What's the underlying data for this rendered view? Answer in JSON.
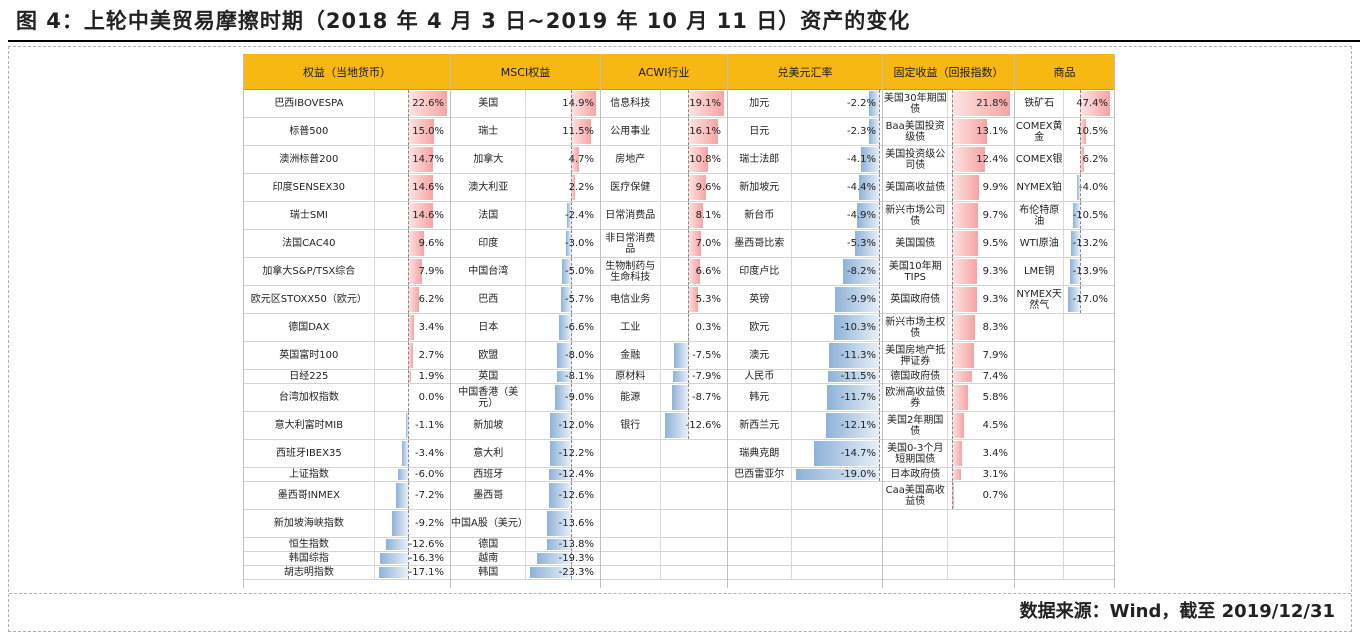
{
  "title": "图 4：上轮中美贸易摩擦时期（2018 年 4 月 3 日~2019 年 10 月 11 日）资产的变化",
  "source": "数据来源：Wind，截至 2019/12/31",
  "colors": {
    "header": "#f8b814",
    "positive": "#f6a4a4",
    "negative": "#8fb2d9"
  },
  "columns": [
    {
      "header": "权益（当地货币）",
      "items": [
        {
          "name": "巴西IBOVESPA",
          "value": "22.6%",
          "num": 22.6
        },
        {
          "name": "标普500",
          "value": "15.0%",
          "num": 15.0
        },
        {
          "name": "澳洲标普200",
          "value": "14.7%",
          "num": 14.7
        },
        {
          "name": "印度SENSEX30",
          "value": "14.6%",
          "num": 14.6
        },
        {
          "name": "瑞士SMI",
          "value": "14.6%",
          "num": 14.6
        },
        {
          "name": "法国CAC40",
          "value": "9.6%",
          "num": 9.6
        },
        {
          "name": "加拿大S&P/TSX综合",
          "value": "7.9%",
          "num": 7.9
        },
        {
          "name": "欧元区STOXX50（欧元）",
          "value": "6.2%",
          "num": 6.2
        },
        {
          "name": "德国DAX",
          "value": "3.4%",
          "num": 3.4
        },
        {
          "name": "英国富时100",
          "value": "2.7%",
          "num": 2.7
        },
        {
          "name": "日经225",
          "value": "1.9%",
          "num": 1.9
        },
        {
          "name": "台湾加权指数",
          "value": "0.0%",
          "num": 0.0
        },
        {
          "name": "意大利富时MIB",
          "value": "-1.1%",
          "num": -1.1
        },
        {
          "name": "西班牙IBEX35",
          "value": "-3.4%",
          "num": -3.4
        },
        {
          "name": "上证指数",
          "value": "-6.0%",
          "num": -6.0
        },
        {
          "name": "墨西哥INMEX",
          "value": "-7.2%",
          "num": -7.2
        },
        {
          "name": "新加坡海峡指数",
          "value": "-9.2%",
          "num": -9.2
        },
        {
          "name": "恒生指数",
          "value": "-12.6%",
          "num": -12.6
        },
        {
          "name": "韩国综指",
          "value": "-16.3%",
          "num": -16.3
        },
        {
          "name": "胡志明指数",
          "value": "-17.1%",
          "num": -17.1
        }
      ]
    },
    {
      "header": "MSCI权益",
      "items": [
        {
          "name": "美国",
          "value": "14.9%",
          "num": 14.9
        },
        {
          "name": "瑞士",
          "value": "11.5%",
          "num": 11.5
        },
        {
          "name": "加拿大",
          "value": "4.7%",
          "num": 4.7
        },
        {
          "name": "澳大利亚",
          "value": "2.2%",
          "num": 2.2
        },
        {
          "name": "法国",
          "value": "-2.4%",
          "num": -2.4
        },
        {
          "name": "印度",
          "value": "-3.0%",
          "num": -3.0
        },
        {
          "name": "中国台湾",
          "value": "-5.0%",
          "num": -5.0
        },
        {
          "name": "巴西",
          "value": "-5.7%",
          "num": -5.7
        },
        {
          "name": "日本",
          "value": "-6.6%",
          "num": -6.6
        },
        {
          "name": "欧盟",
          "value": "-8.0%",
          "num": -8.0
        },
        {
          "name": "英国",
          "value": "-8.1%",
          "num": -8.1
        },
        {
          "name": "中国香港（美元）",
          "value": "-9.0%",
          "num": -9.0
        },
        {
          "name": "新加坡",
          "value": "-12.0%",
          "num": -12.0
        },
        {
          "name": "意大利",
          "value": "-12.2%",
          "num": -12.2
        },
        {
          "name": "西班牙",
          "value": "-12.4%",
          "num": -12.4
        },
        {
          "name": "墨西哥",
          "value": "-12.6%",
          "num": -12.6
        },
        {
          "name": "中国A股（美元）",
          "value": "-13.6%",
          "num": -13.6
        },
        {
          "name": "德国",
          "value": "-13.8%",
          "num": -13.8
        },
        {
          "name": "越南",
          "value": "-19.3%",
          "num": -19.3
        },
        {
          "name": "韩国",
          "value": "-23.3%",
          "num": -23.3
        }
      ]
    },
    {
      "header": "ACWI行业",
      "items": [
        {
          "name": "信息科技",
          "value": "19.1%",
          "num": 19.1
        },
        {
          "name": "公用事业",
          "value": "16.1%",
          "num": 16.1
        },
        {
          "name": "房地产",
          "value": "10.8%",
          "num": 10.8
        },
        {
          "name": "医疗保健",
          "value": "9.6%",
          "num": 9.6
        },
        {
          "name": "日常消费品",
          "value": "8.1%",
          "num": 8.1
        },
        {
          "name": "非日常消费品",
          "value": "7.0%",
          "num": 7.0
        },
        {
          "name": "生物制药与生命科技",
          "value": "6.6%",
          "num": 6.6
        },
        {
          "name": "电信业务",
          "value": "5.3%",
          "num": 5.3
        },
        {
          "name": "工业",
          "value": "0.3%",
          "num": 0.3
        },
        {
          "name": "金融",
          "value": "-7.5%",
          "num": -7.5
        },
        {
          "name": "原材料",
          "value": "-7.9%",
          "num": -7.9
        },
        {
          "name": "能源",
          "value": "-8.7%",
          "num": -8.7
        },
        {
          "name": "银行",
          "value": "-12.6%",
          "num": -12.6
        }
      ]
    },
    {
      "header": "兑美元汇率",
      "items": [
        {
          "name": "加元",
          "value": "-2.2%",
          "num": -2.2
        },
        {
          "name": "日元",
          "value": "-2.3%",
          "num": -2.3
        },
        {
          "name": "瑞士法郎",
          "value": "-4.1%",
          "num": -4.1
        },
        {
          "name": "新加坡元",
          "value": "-4.4%",
          "num": -4.4
        },
        {
          "name": "新台币",
          "value": "-4.9%",
          "num": -4.9
        },
        {
          "name": "墨西哥比索",
          "value": "-5.3%",
          "num": -5.3
        },
        {
          "name": "印度卢比",
          "value": "-8.2%",
          "num": -8.2
        },
        {
          "name": "英镑",
          "value": "-9.9%",
          "num": -9.9
        },
        {
          "name": "欧元",
          "value": "-10.3%",
          "num": -10.3
        },
        {
          "name": "澳元",
          "value": "-11.3%",
          "num": -11.3
        },
        {
          "name": "人民币",
          "value": "-11.5%",
          "num": -11.5
        },
        {
          "name": "韩元",
          "value": "-11.7%",
          "num": -11.7
        },
        {
          "name": "新西兰元",
          "value": "-12.1%",
          "num": -12.1
        },
        {
          "name": "瑞典克朗",
          "value": "-14.7%",
          "num": -14.7
        },
        {
          "name": "巴西雷亚尔",
          "value": "-19.0%",
          "num": -19.0
        }
      ]
    },
    {
      "header": "固定收益（回报指数）",
      "items": [
        {
          "name": "美国30年期国债",
          "value": "21.8%",
          "num": 21.8
        },
        {
          "name": "Baa美国投资级债",
          "value": "13.1%",
          "num": 13.1
        },
        {
          "name": "美国投资级公司债",
          "value": "12.4%",
          "num": 12.4
        },
        {
          "name": "美国高收益债",
          "value": "9.9%",
          "num": 9.9
        },
        {
          "name": "新兴市场公司债",
          "value": "9.7%",
          "num": 9.7
        },
        {
          "name": "美国国债",
          "value": "9.5%",
          "num": 9.5
        },
        {
          "name": "美国10年期TIPS",
          "value": "9.3%",
          "num": 9.3
        },
        {
          "name": "英国政府债",
          "value": "9.3%",
          "num": 9.3
        },
        {
          "name": "新兴市场主权债",
          "value": "8.3%",
          "num": 8.3
        },
        {
          "name": "美国房地产抵押证券",
          "value": "7.9%",
          "num": 7.9
        },
        {
          "name": "德国政府债",
          "value": "7.4%",
          "num": 7.4
        },
        {
          "name": "欧洲高收益债券",
          "value": "5.8%",
          "num": 5.8
        },
        {
          "name": "美国2年期国债",
          "value": "4.5%",
          "num": 4.5
        },
        {
          "name": "美国0-3个月短期国债",
          "value": "3.4%",
          "num": 3.4
        },
        {
          "name": "日本政府债",
          "value": "3.1%",
          "num": 3.1
        },
        {
          "name": "Caa美国高收益债",
          "value": "0.7%",
          "num": 0.7
        }
      ]
    },
    {
      "header": "商品",
      "items": [
        {
          "name": "铁矿石",
          "value": "47.4%",
          "num": 47.4
        },
        {
          "name": "COMEX黄金",
          "value": "10.5%",
          "num": 10.5
        },
        {
          "name": "COMEX银",
          "value": "6.2%",
          "num": 6.2
        },
        {
          "name": "NYMEX铂",
          "value": "-4.0%",
          "num": -4.0
        },
        {
          "name": "布伦特原油",
          "value": "-10.5%",
          "num": -10.5
        },
        {
          "name": "WTI原油",
          "value": "-13.2%",
          "num": -13.2
        },
        {
          "name": "LME铜",
          "value": "-13.9%",
          "num": -13.9
        },
        {
          "name": "NYMEX天然气",
          "value": "-17.0%",
          "num": -17.0
        }
      ]
    }
  ]
}
